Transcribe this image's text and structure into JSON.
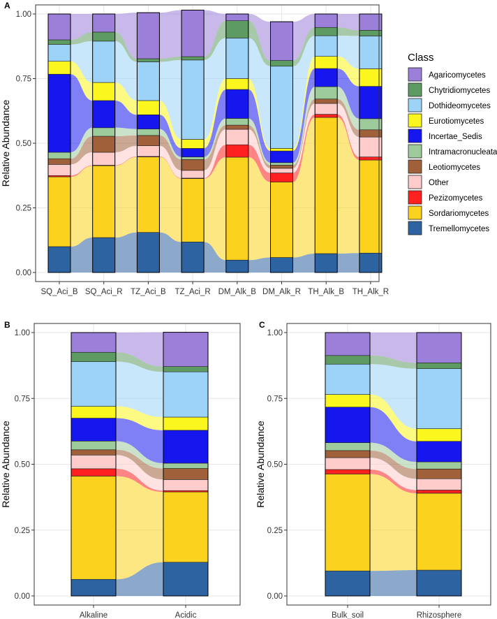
{
  "legend": {
    "title": "Class",
    "items": [
      {
        "label": "Agaricomycetes",
        "color": "#9B7FD8"
      },
      {
        "label": "Chytridiomycetes",
        "color": "#5E9B62"
      },
      {
        "label": "Dothideomycetes",
        "color": "#9CD3F6"
      },
      {
        "label": "Eurotiomycetes",
        "color": "#FAF61E"
      },
      {
        "label": "Incertae_Sedis",
        "color": "#1616EE"
      },
      {
        "label": "Intramacronucleata",
        "color": "#9ECB9C"
      },
      {
        "label": "Leotiomycetes",
        "color": "#A0603A"
      },
      {
        "label": "Other",
        "color": "#FFCCCC"
      },
      {
        "label": "Pezizomycetes",
        "color": "#FF2020"
      },
      {
        "label": "Sordariomycetes",
        "color": "#FBD31E"
      },
      {
        "label": "Tremellomycetes",
        "color": "#2E63A2"
      }
    ]
  },
  "chart_data": [
    {
      "panel": "A",
      "type": "bar",
      "stacked": true,
      "alluvial": true,
      "xlabel": "",
      "ylabel": "Relative Abundance",
      "ylim": [
        0,
        1
      ],
      "yticks": [
        "0.00",
        "0.25",
        "0.50",
        "0.75",
        "1.00"
      ],
      "categories": [
        "SQ_Aci_B",
        "SQ_Aci_R",
        "TZ_Aci_B",
        "TZ_Aci_R",
        "DM_Alk_B",
        "DM_Alk_R",
        "TH_Alk_B",
        "TH_Alk_R"
      ],
      "series": [
        {
          "name": "Tremellomycetes",
          "values": [
            0.1,
            0.135,
            0.155,
            0.118,
            0.048,
            0.058,
            0.073,
            0.075
          ]
        },
        {
          "name": "Sordariomycetes",
          "values": [
            0.27,
            0.278,
            0.292,
            0.245,
            0.398,
            0.292,
            0.527,
            0.36
          ]
        },
        {
          "name": "Pezizomycetes",
          "values": [
            0.005,
            0.002,
            0.002,
            0.002,
            0.048,
            0.035,
            0.012,
            0.012
          ]
        },
        {
          "name": "Other",
          "values": [
            0.043,
            0.05,
            0.041,
            0.03,
            0.06,
            0.018,
            0.042,
            0.077
          ]
        },
        {
          "name": "Leotiomycetes",
          "values": [
            0.022,
            0.062,
            0.04,
            0.042,
            0.016,
            0.012,
            0.017,
            0.028
          ]
        },
        {
          "name": "Intramacronucleata",
          "values": [
            0.025,
            0.033,
            0.025,
            0.01,
            0.026,
            0.01,
            0.048,
            0.043
          ]
        },
        {
          "name": "Incertae_Sedis",
          "values": [
            0.302,
            0.105,
            0.055,
            0.033,
            0.112,
            0.045,
            0.07,
            0.125
          ]
        },
        {
          "name": "Eurotiomycetes",
          "values": [
            0.05,
            0.07,
            0.055,
            0.035,
            0.042,
            0.01,
            0.047,
            0.068
          ]
        },
        {
          "name": "Dothideomycetes",
          "values": [
            0.065,
            0.16,
            0.15,
            0.307,
            0.157,
            0.318,
            0.08,
            0.127
          ]
        },
        {
          "name": "Chytridiomycetes",
          "values": [
            0.018,
            0.035,
            0.012,
            0.013,
            0.067,
            0.022,
            0.032,
            0.022
          ]
        },
        {
          "name": "Agaricomycetes",
          "values": [
            0.1,
            0.07,
            0.178,
            0.18,
            0.026,
            0.15,
            0.052,
            0.063
          ]
        }
      ]
    },
    {
      "panel": "B",
      "type": "bar",
      "stacked": true,
      "alluvial": true,
      "xlabel": "",
      "ylabel": "Relative Abundance",
      "ylim": [
        0,
        1
      ],
      "yticks": [
        "0.00",
        "0.25",
        "0.50",
        "0.75",
        "1.00"
      ],
      "categories": [
        "Alkaline",
        "Acidic"
      ],
      "series": [
        {
          "name": "Tremellomycetes",
          "values": [
            0.063,
            0.128
          ]
        },
        {
          "name": "Sordariomycetes",
          "values": [
            0.392,
            0.267
          ]
        },
        {
          "name": "Pezizomycetes",
          "values": [
            0.028,
            0.005
          ]
        },
        {
          "name": "Other",
          "values": [
            0.052,
            0.042
          ]
        },
        {
          "name": "Leotiomycetes",
          "values": [
            0.02,
            0.042
          ]
        },
        {
          "name": "Intramacronucleata",
          "values": [
            0.033,
            0.02
          ]
        },
        {
          "name": "Incertae_Sedis",
          "values": [
            0.087,
            0.125
          ]
        },
        {
          "name": "Eurotiomycetes",
          "values": [
            0.045,
            0.05
          ]
        },
        {
          "name": "Dothideomycetes",
          "values": [
            0.17,
            0.172
          ]
        },
        {
          "name": "Chytridiomycetes",
          "values": [
            0.035,
            0.02
          ]
        },
        {
          "name": "Agaricomycetes",
          "values": [
            0.075,
            0.13
          ]
        }
      ]
    },
    {
      "panel": "C",
      "type": "bar",
      "stacked": true,
      "alluvial": true,
      "xlabel": "",
      "ylabel": "Relative Abundance",
      "ylim": [
        0,
        1
      ],
      "yticks": [
        "0.00",
        "0.25",
        "0.50",
        "0.75",
        "1.00"
      ],
      "categories": [
        "Bulk_soil",
        "Rhizosphere"
      ],
      "series": [
        {
          "name": "Tremellomycetes",
          "values": [
            0.095,
            0.098
          ]
        },
        {
          "name": "Sordariomycetes",
          "values": [
            0.368,
            0.292
          ]
        },
        {
          "name": "Pezizomycetes",
          "values": [
            0.017,
            0.012
          ]
        },
        {
          "name": "Other",
          "values": [
            0.045,
            0.043
          ]
        },
        {
          "name": "Leotiomycetes",
          "values": [
            0.027,
            0.037
          ]
        },
        {
          "name": "Intramacronucleata",
          "values": [
            0.03,
            0.027
          ]
        },
        {
          "name": "Incertae_Sedis",
          "values": [
            0.135,
            0.078
          ]
        },
        {
          "name": "Eurotiomycetes",
          "values": [
            0.048,
            0.048
          ]
        },
        {
          "name": "Dothideomycetes",
          "values": [
            0.115,
            0.228
          ]
        },
        {
          "name": "Chytridiomycetes",
          "values": [
            0.033,
            0.022
          ]
        },
        {
          "name": "Agaricomycetes",
          "values": [
            0.087,
            0.115
          ]
        }
      ]
    }
  ]
}
